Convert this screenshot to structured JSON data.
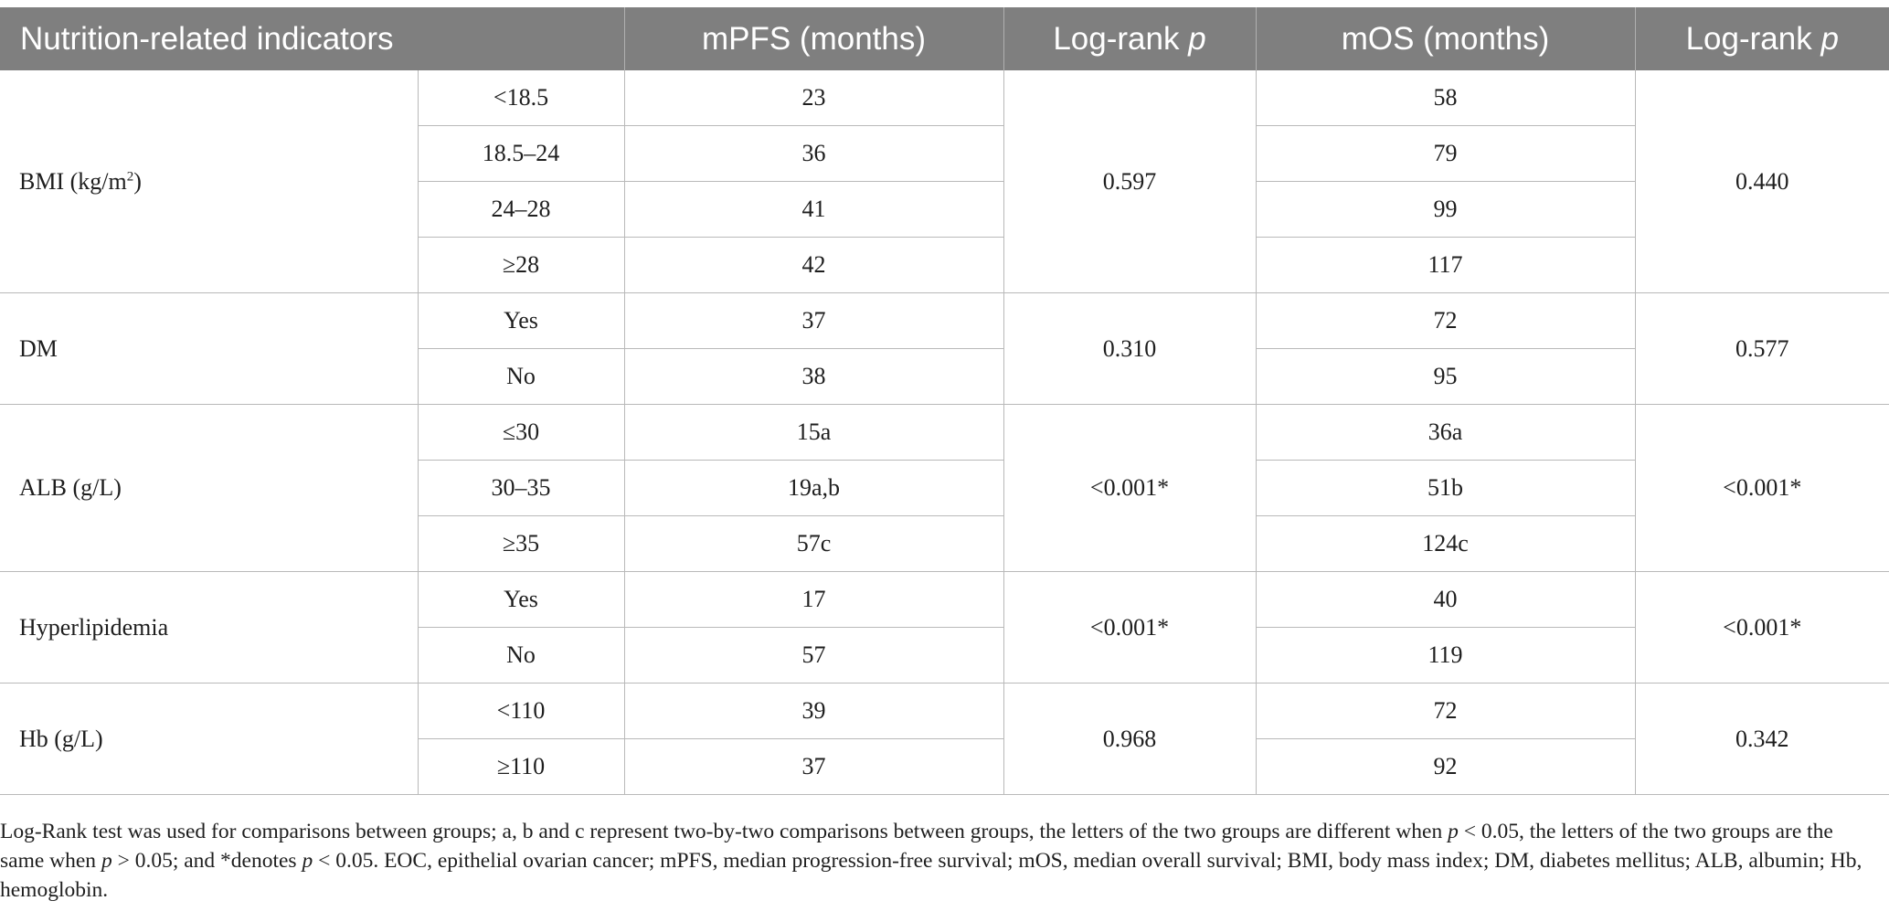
{
  "header": {
    "indicator": "Nutrition-related indicators",
    "mpfs": "mPFS (months)",
    "logrank_prefix": "Log-rank ",
    "logrank_p": "p",
    "mos": "mOS (months)"
  },
  "groups": [
    {
      "label": "BMI (kg/m",
      "label_sup": "2",
      "label_suffix": ")",
      "mpfs_p": "0.597",
      "mos_p": "0.440",
      "rows": [
        {
          "cat": "<18.5",
          "mpfs": "23",
          "mos": "58"
        },
        {
          "cat": "18.5–24",
          "mpfs": "36",
          "mos": "79"
        },
        {
          "cat": "24–28",
          "mpfs": "41",
          "mos": "99"
        },
        {
          "cat": "≥28",
          "mpfs": "42",
          "mos": "117"
        }
      ]
    },
    {
      "label": "DM",
      "mpfs_p": "0.310",
      "mos_p": "0.577",
      "rows": [
        {
          "cat": "Yes",
          "mpfs": "37",
          "mos": "72"
        },
        {
          "cat": "No",
          "mpfs": "38",
          "mos": "95"
        }
      ]
    },
    {
      "label": "ALB (g/L)",
      "mpfs_p": "<0.001*",
      "mos_p": "<0.001*",
      "rows": [
        {
          "cat": "≤30",
          "mpfs": "15a",
          "mos": "36a"
        },
        {
          "cat": "30–35",
          "mpfs": "19a,b",
          "mos": "51b"
        },
        {
          "cat": "≥35",
          "mpfs": "57c",
          "mos": "124c"
        }
      ]
    },
    {
      "label": "Hyperlipidemia",
      "mpfs_p": "<0.001*",
      "mos_p": "<0.001*",
      "rows": [
        {
          "cat": "Yes",
          "mpfs": "17",
          "mos": "40"
        },
        {
          "cat": "No",
          "mpfs": "57",
          "mos": "119"
        }
      ]
    },
    {
      "label": "Hb (g/L)",
      "mpfs_p": "0.968",
      "mos_p": "0.342",
      "rows": [
        {
          "cat": "<110",
          "mpfs": "39",
          "mos": "72"
        },
        {
          "cat": "≥110",
          "mpfs": "37",
          "mos": "92"
        }
      ]
    }
  ],
  "footnote": {
    "s1": "Log-Rank test was used for comparisons between groups; a, b and c represent two-by-two comparisons between groups, the letters of the two groups are different when ",
    "p1": "p",
    "s2": " < 0.05, the letters of the two groups are the same when ",
    "p2": "p",
    "s3": " > 0.05; and *denotes ",
    "p3": "p",
    "s4": " < 0.05. EOC, epithelial ovarian cancer; mPFS, median progression-free survival; mOS, median overall survival; BMI, body mass index; DM, diabetes mellitus; ALB, albumin; Hb, hemoglobin."
  }
}
